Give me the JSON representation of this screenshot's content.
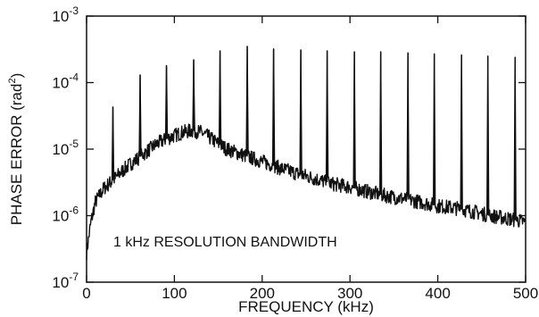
{
  "chart_data": {
    "type": "line",
    "title": "",
    "xlabel": "FREQUENCY (kHz)",
    "ylabel_text": "PHASE ERROR (rad",
    "ylabel_exp": "2",
    "ylabel_close": ")",
    "annotation": "1 kHz RESOLUTION BANDWIDTH",
    "xlim": [
      0,
      500
    ],
    "ylim": [
      1e-07,
      0.001
    ],
    "yscale": "log",
    "grid": false,
    "x_ticks": [
      {
        "value": 0,
        "label": "0"
      },
      {
        "value": 100,
        "label": "100"
      },
      {
        "value": 200,
        "label": "200"
      },
      {
        "value": 300,
        "label": "300"
      },
      {
        "value": 400,
        "label": "400"
      },
      {
        "value": 500,
        "label": "500"
      }
    ],
    "y_ticks": [
      {
        "value": 1e-07,
        "base": "10",
        "exp": "-7"
      },
      {
        "value": 1e-06,
        "base": "10",
        "exp": "-6"
      },
      {
        "value": 1e-05,
        "base": "10",
        "exp": "-5"
      },
      {
        "value": 0.0001,
        "base": "10",
        "exp": "-4"
      },
      {
        "value": 0.001,
        "base": "10",
        "exp": "-3"
      }
    ],
    "series": [
      {
        "color": "#111111",
        "baseline": [
          [
            0,
            2.8e-07
          ],
          [
            5,
            8e-07
          ],
          [
            10,
            1.6e-06
          ],
          [
            20,
            2.6e-06
          ],
          [
            30,
            3.4e-06
          ],
          [
            40,
            4.6e-06
          ],
          [
            50,
            6e-06
          ],
          [
            60,
            7.5e-06
          ],
          [
            70,
            9.5e-06
          ],
          [
            80,
            1.2e-05
          ],
          [
            90,
            1.4e-05
          ],
          [
            100,
            1.6e-05
          ],
          [
            110,
            1.8e-05
          ],
          [
            120,
            1.9e-05
          ],
          [
            130,
            1.8e-05
          ],
          [
            140,
            1.5e-05
          ],
          [
            150,
            1.2e-05
          ],
          [
            160,
            1e-05
          ],
          [
            180,
            8e-06
          ],
          [
            200,
            6.5e-06
          ],
          [
            220,
            5.2e-06
          ],
          [
            240,
            4.3e-06
          ],
          [
            260,
            3.6e-06
          ],
          [
            280,
            3e-06
          ],
          [
            300,
            2.7e-06
          ],
          [
            320,
            2.3e-06
          ],
          [
            340,
            2e-06
          ],
          [
            360,
            1.8e-06
          ],
          [
            380,
            1.6e-06
          ],
          [
            400,
            1.4e-06
          ],
          [
            420,
            1.3e-06
          ],
          [
            440,
            1.15e-06
          ],
          [
            460,
            1e-06
          ],
          [
            480,
            9e-07
          ],
          [
            500,
            8e-07
          ]
        ],
        "peaks": [
          {
            "x": 30,
            "y": 4.3e-05
          },
          {
            "x": 61,
            "y": 0.00013
          },
          {
            "x": 91,
            "y": 0.00018
          },
          {
            "x": 122,
            "y": 0.00022
          },
          {
            "x": 152,
            "y": 0.0003
          },
          {
            "x": 183,
            "y": 0.00035
          },
          {
            "x": 213,
            "y": 0.00032
          },
          {
            "x": 244,
            "y": 0.00031
          },
          {
            "x": 274,
            "y": 0.0003
          },
          {
            "x": 305,
            "y": 0.00029
          },
          {
            "x": 335,
            "y": 0.00029
          },
          {
            "x": 366,
            "y": 0.00028
          },
          {
            "x": 396,
            "y": 0.00027
          },
          {
            "x": 427,
            "y": 0.00026
          },
          {
            "x": 457,
            "y": 0.00025
          },
          {
            "x": 488,
            "y": 0.00024
          }
        ]
      }
    ]
  }
}
